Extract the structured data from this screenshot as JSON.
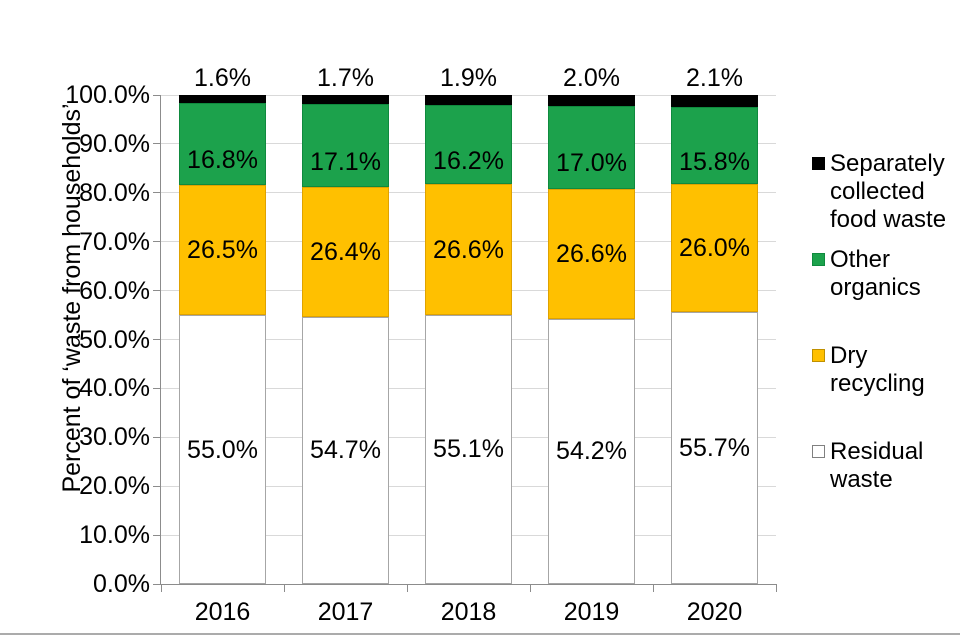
{
  "chart_data": {
    "type": "bar",
    "variant": "stacked-column",
    "title": "",
    "xlabel": "",
    "ylabel": "Percent of ‘waste from households’",
    "categories": [
      "2016",
      "2017",
      "2018",
      "2019",
      "2020"
    ],
    "series": [
      {
        "name": "Residual waste",
        "color": "#ffffff",
        "border": "#a6a6a6",
        "values": [
          55.0,
          54.7,
          55.1,
          54.2,
          55.7
        ],
        "labels": [
          "55.0%",
          "54.7%",
          "55.1%",
          "54.2%",
          "55.7%"
        ],
        "label_position": "center"
      },
      {
        "name": "Dry recycling",
        "color": "#ffc000",
        "border": "#dfa200",
        "values": [
          26.5,
          26.4,
          26.6,
          26.6,
          26.0
        ],
        "labels": [
          "26.5%",
          "26.4%",
          "26.6%",
          "26.6%",
          "26.0%"
        ],
        "label_position": "center"
      },
      {
        "name": "Other organics",
        "color": "#1ca24c",
        "border": "#0f8a3e",
        "values": [
          16.8,
          17.1,
          16.2,
          17.0,
          15.8
        ],
        "labels": [
          "16.8%",
          "17.1%",
          "16.2%",
          "17.0%",
          "15.8%"
        ],
        "label_position": "center-low"
      },
      {
        "name": "Separately collected food waste",
        "color": "#000000",
        "border": "#000000",
        "values": [
          1.6,
          1.7,
          1.9,
          2.0,
          2.1
        ],
        "labels": [
          "1.6%",
          "1.7%",
          "1.9%",
          "2.0%",
          "2.1%"
        ],
        "label_position": "above"
      }
    ],
    "y_ticks": [
      "0.0%",
      "10.0%",
      "20.0%",
      "30.0%",
      "40.0%",
      "50.0%",
      "60.0%",
      "70.0%",
      "80.0%",
      "90.0%",
      "100.0%"
    ],
    "ylim": [
      0,
      100
    ],
    "grid": "horizontal",
    "legend_position": "right"
  },
  "legend": {
    "items": [
      {
        "label": "Separately collected food waste",
        "lines": [
          "Separately",
          "collected",
          "food waste"
        ],
        "swatch_color": "#000000",
        "swatch_border": "#000000"
      },
      {
        "label": "Other organics",
        "lines": [
          "Other",
          "organics"
        ],
        "swatch_color": "#1ca24c",
        "swatch_border": "#0f8a3e"
      },
      {
        "label": "Dry recycling",
        "lines": [
          "Dry recycling"
        ],
        "swatch_color": "#ffc000",
        "swatch_border": "#bf9000"
      },
      {
        "label": "Residual waste",
        "lines": [
          "Residual",
          "waste"
        ],
        "swatch_color": "#ffffff",
        "swatch_border": "#808080"
      }
    ]
  }
}
